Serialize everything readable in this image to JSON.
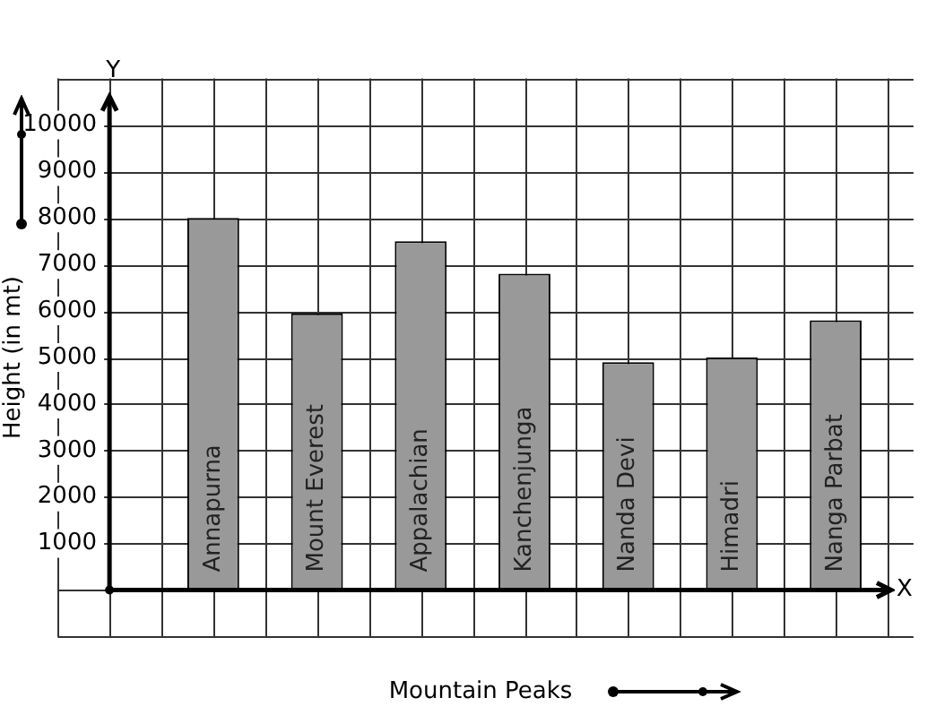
{
  "chart_data": {
    "type": "bar",
    "xlabel": "Mountain Peaks",
    "ylabel": "Height (in mt)",
    "categories": [
      "Annapurna",
      "Mount Everest",
      "Appalachian",
      "Kanchenjunga",
      "Nanda Devi",
      "Himadri",
      "Nanga Parbat"
    ],
    "values": [
      8000,
      5950,
      7500,
      6800,
      4900,
      5000,
      5800
    ],
    "color": "#999999",
    "ylim": [
      -1000,
      11000
    ],
    "yticks": [
      1000,
      2000,
      3000,
      4000,
      5000,
      6000,
      7000,
      8000,
      9000,
      10000
    ],
    "grid": true,
    "legend": false,
    "annotations": [
      "Y",
      "X"
    ]
  }
}
